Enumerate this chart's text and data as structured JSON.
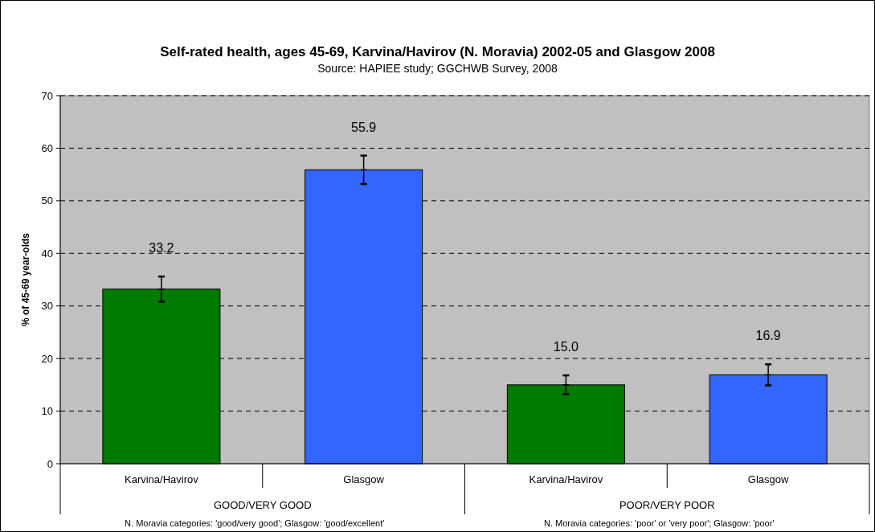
{
  "chart_data": {
    "type": "bar",
    "title": "Self-rated health, ages 45-69, Karvina/Havirov (N. Moravia) 2002-05 and Glasgow 2008",
    "subtitle": "Source: HAPIEE study; GGCHWB Survey, 2008",
    "ylabel": "% of 45-69 year-olds",
    "categories": [
      "Karvina/Havirov",
      "Glasgow",
      "Karvina/Havirov",
      "Glasgow"
    ],
    "values": [
      33.2,
      55.9,
      15.0,
      16.9
    ],
    "colors": [
      "#007a00",
      "#3366ff",
      "#007a00",
      "#3366ff"
    ],
    "errors": [
      2.4,
      2.7,
      1.8,
      2.0
    ],
    "value_labels": [
      "33.2",
      "55.9",
      "15.0",
      "16.9"
    ],
    "ylim": [
      0,
      70
    ],
    "yticks": [
      0,
      10,
      20,
      30,
      40,
      50,
      60,
      70
    ],
    "grid": "y",
    "annotations": [
      "GOOD/VERY GOOD",
      "POOR/VERY POOR",
      "N. Moravia categories: 'good/very good'; Glasgow: 'good/excellent'",
      "N. Moravia categories: 'poor' or 'very poor'; Glasgow: 'poor'"
    ]
  }
}
